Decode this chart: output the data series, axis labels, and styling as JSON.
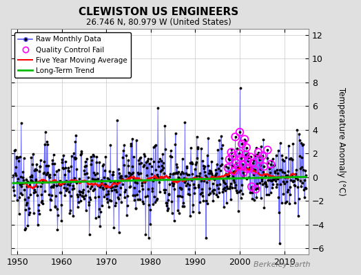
{
  "title": "CLEWISTON US ENGINEERS",
  "subtitle": "26.746 N, 80.979 W (United States)",
  "ylabel": "Temperature Anomaly (°C)",
  "watermark": "Berkeley Earth",
  "xlim": [
    1948.5,
    2015.5
  ],
  "ylim": [
    -6.5,
    12.5
  ],
  "yticks": [
    -6,
    -4,
    -2,
    0,
    2,
    4,
    6,
    8,
    10,
    12
  ],
  "xticks": [
    1950,
    1960,
    1970,
    1980,
    1990,
    2000,
    2010
  ],
  "bg_color": "#e0e0e0",
  "plot_bg_color": "#ffffff",
  "raw_line_color": "#5555ff",
  "raw_dot_color": "#000000",
  "qc_color": "#ff00ff",
  "moving_avg_color": "#ff0000",
  "trend_color": "#00bb00",
  "grid_color": "#c8c8c8",
  "trend_slope": 0.008,
  "trend_intercept": -0.25,
  "seed": 12345
}
